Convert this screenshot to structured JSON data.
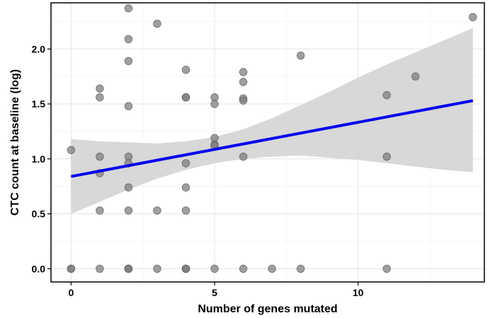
{
  "chart_data": {
    "type": "scatter",
    "title": "",
    "xlabel": "Number of genes mutated",
    "ylabel": "CTC count at baseline (log)",
    "xlim": [
      -0.7,
      14.4
    ],
    "ylim": [
      -0.12,
      2.42
    ],
    "x_ticks": [
      0,
      5,
      10
    ],
    "x_tick_labels": [
      "0",
      "5",
      "10"
    ],
    "y_ticks": [
      0.0,
      0.5,
      1.0,
      1.5,
      2.0
    ],
    "y_tick_labels": [
      "0.0",
      "0.5",
      "1.0",
      "1.5",
      "2.0"
    ],
    "grid": true,
    "legend": "none",
    "points": [
      {
        "x": 0,
        "y": 1.08
      },
      {
        "x": 0,
        "y": 0
      },
      {
        "x": 0,
        "y": 0
      },
      {
        "x": 1,
        "y": 1.64
      },
      {
        "x": 1,
        "y": 1.56
      },
      {
        "x": 1,
        "y": 1.02
      },
      {
        "x": 1,
        "y": 0.87
      },
      {
        "x": 1,
        "y": 0.53
      },
      {
        "x": 1,
        "y": 0
      },
      {
        "x": 2,
        "y": 2.37
      },
      {
        "x": 2,
        "y": 2.09
      },
      {
        "x": 2,
        "y": 1.89
      },
      {
        "x": 2,
        "y": 1.48
      },
      {
        "x": 2,
        "y": 1.02
      },
      {
        "x": 2,
        "y": 0.96
      },
      {
        "x": 2,
        "y": 0.74
      },
      {
        "x": 2,
        "y": 0.53
      },
      {
        "x": 2,
        "y": 0
      },
      {
        "x": 2,
        "y": 0
      },
      {
        "x": 2,
        "y": 0
      },
      {
        "x": 3,
        "y": 2.23
      },
      {
        "x": 3,
        "y": 0.53
      },
      {
        "x": 3,
        "y": 0
      },
      {
        "x": 4,
        "y": 1.81
      },
      {
        "x": 4,
        "y": 1.56
      },
      {
        "x": 4,
        "y": 1.56
      },
      {
        "x": 4,
        "y": 0.96
      },
      {
        "x": 4,
        "y": 0.74
      },
      {
        "x": 4,
        "y": 0.53
      },
      {
        "x": 4,
        "y": 0
      },
      {
        "x": 4,
        "y": 0
      },
      {
        "x": 4,
        "y": 0
      },
      {
        "x": 5,
        "y": 1.56
      },
      {
        "x": 5,
        "y": 1.5
      },
      {
        "x": 5,
        "y": 1.19
      },
      {
        "x": 5,
        "y": 1.13
      },
      {
        "x": 5,
        "y": 1.12
      },
      {
        "x": 5,
        "y": 0
      },
      {
        "x": 6,
        "y": 1.79
      },
      {
        "x": 6,
        "y": 1.7
      },
      {
        "x": 6,
        "y": 1.55
      },
      {
        "x": 6,
        "y": 1.53
      },
      {
        "x": 6,
        "y": 1.02
      },
      {
        "x": 6,
        "y": 0
      },
      {
        "x": 7,
        "y": 0
      },
      {
        "x": 8,
        "y": 1.94
      },
      {
        "x": 8,
        "y": 0
      },
      {
        "x": 11,
        "y": 1.58
      },
      {
        "x": 11,
        "y": 1.02
      },
      {
        "x": 11,
        "y": 0
      },
      {
        "x": 12,
        "y": 1.75
      },
      {
        "x": 14,
        "y": 2.29
      }
    ],
    "fit_line": {
      "x": [
        0,
        14
      ],
      "y": [
        0.84,
        1.53
      ]
    },
    "confidence_band": {
      "x": [
        0,
        1,
        2,
        3,
        4,
        5,
        6,
        7,
        8,
        9,
        10,
        11,
        12,
        13,
        14
      ],
      "lower": [
        0.5,
        0.61,
        0.72,
        0.82,
        0.9,
        0.96,
        1.0,
        1.02,
        1.03,
        1.01,
        0.99,
        0.96,
        0.93,
        0.9,
        0.88
      ],
      "upper": [
        1.18,
        1.16,
        1.15,
        1.14,
        1.16,
        1.2,
        1.27,
        1.37,
        1.49,
        1.61,
        1.74,
        1.86,
        1.97,
        2.08,
        2.19
      ]
    },
    "colors": {
      "point_fill": "#7f7f7f",
      "point_stroke": "#555555",
      "fit_line": "#0000ee",
      "band": "#d4d4d4",
      "grid": "#e6e6e6"
    }
  }
}
